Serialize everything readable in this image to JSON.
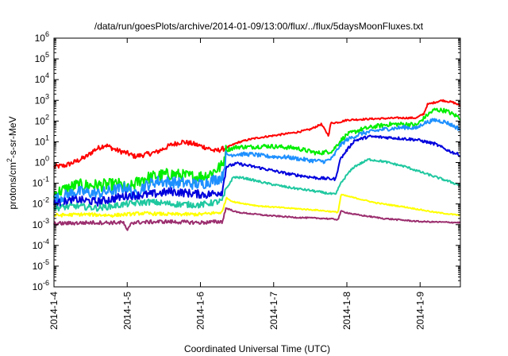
{
  "chart_data": {
    "type": "line",
    "title": "/data/run/goesPlots/archive/2014-01-09/13:00/flux/../flux/5daysMoonFluxes.txt",
    "xlabel": "Coordinated Universal Time (UTC)",
    "ylabel_parts": {
      "pre": "protons/cm",
      "sup": "2",
      "post": "-s-sr-MeV"
    },
    "y_scale": "log",
    "ylim": [
      1e-06,
      1000000.0
    ],
    "xlim_days": [
      0,
      5.55
    ],
    "grid": false,
    "legend": "none",
    "x_ticks": [
      {
        "label": "2014-1-4",
        "day": 0
      },
      {
        "label": "2014-1-5",
        "day": 1
      },
      {
        "label": "2014-1-6",
        "day": 2
      },
      {
        "label": "2014-1-7",
        "day": 3
      },
      {
        "label": "2014-1-8",
        "day": 4
      },
      {
        "label": "2014-1-9",
        "day": 5
      }
    ],
    "y_ticks": [
      {
        "base": "10",
        "exp": "-6",
        "value": -6
      },
      {
        "base": "10",
        "exp": "-5",
        "value": -5
      },
      {
        "base": "10",
        "exp": "-4",
        "value": -4
      },
      {
        "base": "10",
        "exp": "-3",
        "value": -3
      },
      {
        "base": "10",
        "exp": "-2",
        "value": -2
      },
      {
        "base": "10",
        "exp": "-1",
        "value": -1
      },
      {
        "base": "10",
        "exp": "0",
        "value": 0
      },
      {
        "base": "10",
        "exp": "1",
        "value": 1
      },
      {
        "base": "10",
        "exp": "2",
        "value": 2
      },
      {
        "base": "10",
        "exp": "3",
        "value": 3
      },
      {
        "base": "10",
        "exp": "4",
        "value": 4
      },
      {
        "base": "10",
        "exp": "5",
        "value": 5
      },
      {
        "base": "10",
        "exp": "6",
        "value": 6
      }
    ],
    "series": [
      {
        "color": "#ff0000",
        "noise": 0.12,
        "points": [
          [
            0,
            -0.2
          ],
          [
            0.15,
            -0.15
          ],
          [
            0.3,
            0.05
          ],
          [
            0.45,
            0.3
          ],
          [
            0.55,
            0.6
          ],
          [
            0.7,
            0.85
          ],
          [
            0.85,
            0.6
          ],
          [
            1.0,
            0.45
          ],
          [
            1.1,
            0.3
          ],
          [
            1.2,
            0.35
          ],
          [
            1.4,
            0.5
          ],
          [
            1.6,
            0.85
          ],
          [
            1.75,
            1.0
          ],
          [
            1.9,
            0.9
          ],
          [
            2.1,
            0.7
          ],
          [
            2.2,
            0.55
          ],
          [
            2.35,
            0.7
          ],
          [
            2.5,
            0.95
          ],
          [
            2.65,
            1.1
          ],
          [
            2.8,
            1.2
          ],
          [
            3.0,
            1.3
          ],
          [
            3.3,
            1.45
          ],
          [
            3.5,
            1.6
          ],
          [
            3.65,
            1.85
          ],
          [
            3.75,
            1.3
          ],
          [
            3.78,
            1.9
          ],
          [
            3.9,
            1.95
          ],
          [
            4.0,
            2.05
          ],
          [
            4.3,
            2.1
          ],
          [
            4.7,
            2.15
          ],
          [
            4.95,
            2.15
          ],
          [
            5.05,
            2.35
          ],
          [
            5.1,
            2.8
          ],
          [
            5.3,
            3.0
          ],
          [
            5.45,
            2.9
          ],
          [
            5.55,
            2.75
          ]
        ]
      },
      {
        "color": "#00ee00",
        "noise": 0.3,
        "points": [
          [
            0,
            -1.5
          ],
          [
            0.3,
            -1.1
          ],
          [
            0.6,
            -1.1
          ],
          [
            0.9,
            -1.05
          ],
          [
            1.0,
            -1.3
          ],
          [
            1.2,
            -0.8
          ],
          [
            1.4,
            -0.65
          ],
          [
            1.6,
            -0.55
          ],
          [
            1.8,
            -0.65
          ],
          [
            1.95,
            -0.7
          ],
          [
            2.1,
            -0.6
          ],
          [
            2.3,
            -0.15
          ],
          [
            2.35,
            0.6
          ],
          [
            2.5,
            0.75
          ],
          [
            2.7,
            0.75
          ],
          [
            2.9,
            0.8
          ],
          [
            3.1,
            0.75
          ],
          [
            3.3,
            0.7
          ],
          [
            3.6,
            0.45
          ],
          [
            3.8,
            0.55
          ],
          [
            3.9,
            1.0
          ],
          [
            4.0,
            1.35
          ],
          [
            4.2,
            1.6
          ],
          [
            4.4,
            1.75
          ],
          [
            4.6,
            1.85
          ],
          [
            4.85,
            1.85
          ],
          [
            4.95,
            1.8
          ],
          [
            5.1,
            2.3
          ],
          [
            5.2,
            2.55
          ],
          [
            5.35,
            2.5
          ],
          [
            5.55,
            2.15
          ]
        ]
      },
      {
        "color": "#1e90ff",
        "noise": 0.28,
        "points": [
          [
            0,
            -1.8
          ],
          [
            0.3,
            -1.4
          ],
          [
            0.6,
            -1.5
          ],
          [
            1.0,
            -1.2
          ],
          [
            1.1,
            -1.6
          ],
          [
            1.2,
            -1.2
          ],
          [
            1.4,
            -0.9
          ],
          [
            1.6,
            -0.95
          ],
          [
            1.8,
            -1.0
          ],
          [
            2.0,
            -1.05
          ],
          [
            2.3,
            -0.7
          ],
          [
            2.35,
            0.35
          ],
          [
            2.5,
            0.4
          ],
          [
            2.7,
            0.4
          ],
          [
            2.9,
            0.3
          ],
          [
            3.2,
            0.25
          ],
          [
            3.5,
            0.1
          ],
          [
            3.7,
            0.05
          ],
          [
            3.8,
            0.2
          ],
          [
            3.9,
            0.8
          ],
          [
            4.0,
            1.1
          ],
          [
            4.2,
            1.4
          ],
          [
            4.5,
            1.6
          ],
          [
            4.8,
            1.7
          ],
          [
            4.95,
            1.65
          ],
          [
            5.05,
            1.9
          ],
          [
            5.2,
            2.05
          ],
          [
            5.35,
            1.95
          ],
          [
            5.55,
            1.6
          ]
        ]
      },
      {
        "color": "#0000dd",
        "noise": 0.2,
        "points": [
          [
            0,
            -2.0
          ],
          [
            0.3,
            -1.8
          ],
          [
            0.6,
            -1.9
          ],
          [
            1.0,
            -1.6
          ],
          [
            1.3,
            -1.55
          ],
          [
            1.6,
            -1.4
          ],
          [
            1.9,
            -1.5
          ],
          [
            2.1,
            -1.55
          ],
          [
            2.3,
            -1.4
          ],
          [
            2.35,
            -0.2
          ],
          [
            2.5,
            -0.05
          ],
          [
            2.8,
            -0.25
          ],
          [
            3.0,
            -0.4
          ],
          [
            3.2,
            -0.55
          ],
          [
            3.6,
            -0.75
          ],
          [
            3.85,
            -0.8
          ],
          [
            3.9,
            0.1
          ],
          [
            4.0,
            0.6
          ],
          [
            4.1,
            1.05
          ],
          [
            4.3,
            1.25
          ],
          [
            4.6,
            1.2
          ],
          [
            4.95,
            1.1
          ],
          [
            5.2,
            0.9
          ],
          [
            5.4,
            0.55
          ],
          [
            5.55,
            0.35
          ]
        ]
      },
      {
        "color": "#20c8a0",
        "noise": 0.15,
        "points": [
          [
            0,
            -2.2
          ],
          [
            0.3,
            -2.1
          ],
          [
            0.6,
            -2.2
          ],
          [
            1.0,
            -2.0
          ],
          [
            1.3,
            -1.9
          ],
          [
            1.6,
            -2.0
          ],
          [
            2.0,
            -2.05
          ],
          [
            2.3,
            -1.85
          ],
          [
            2.35,
            -1.3
          ],
          [
            2.45,
            -0.7
          ],
          [
            2.6,
            -0.75
          ],
          [
            2.9,
            -1.0
          ],
          [
            3.2,
            -1.2
          ],
          [
            3.5,
            -1.35
          ],
          [
            3.85,
            -1.55
          ],
          [
            3.9,
            -1.1
          ],
          [
            4.0,
            -0.6
          ],
          [
            4.1,
            -0.2
          ],
          [
            4.3,
            0.15
          ],
          [
            4.5,
            0.05
          ],
          [
            4.8,
            -0.2
          ],
          [
            5.0,
            -0.45
          ],
          [
            5.3,
            -0.8
          ],
          [
            5.55,
            -1.1
          ]
        ]
      },
      {
        "color": "#ffff00",
        "noise": 0.08,
        "points": [
          [
            0,
            -2.55
          ],
          [
            0.4,
            -2.5
          ],
          [
            0.8,
            -2.55
          ],
          [
            1.2,
            -2.45
          ],
          [
            1.6,
            -2.5
          ],
          [
            2.0,
            -2.5
          ],
          [
            2.3,
            -2.4
          ],
          [
            2.35,
            -1.7
          ],
          [
            2.45,
            -1.9
          ],
          [
            2.8,
            -2.1
          ],
          [
            3.2,
            -2.2
          ],
          [
            3.6,
            -2.3
          ],
          [
            3.88,
            -2.4
          ],
          [
            3.92,
            -1.55
          ],
          [
            4.1,
            -1.7
          ],
          [
            4.4,
            -1.95
          ],
          [
            4.8,
            -2.15
          ],
          [
            5.2,
            -2.4
          ],
          [
            5.55,
            -2.55
          ]
        ]
      },
      {
        "color": "#9b2e6e",
        "noise": 0.09,
        "points": [
          [
            0,
            -2.95
          ],
          [
            0.5,
            -2.9
          ],
          [
            0.95,
            -2.9
          ],
          [
            1.0,
            -3.35
          ],
          [
            1.05,
            -2.9
          ],
          [
            1.5,
            -2.85
          ],
          [
            2.0,
            -2.9
          ],
          [
            2.3,
            -2.85
          ],
          [
            2.35,
            -2.2
          ],
          [
            2.5,
            -2.4
          ],
          [
            2.9,
            -2.55
          ],
          [
            3.3,
            -2.65
          ],
          [
            3.7,
            -2.7
          ],
          [
            3.88,
            -2.75
          ],
          [
            3.92,
            -2.35
          ],
          [
            4.1,
            -2.5
          ],
          [
            4.5,
            -2.7
          ],
          [
            5.0,
            -2.85
          ],
          [
            5.55,
            -2.9
          ]
        ]
      }
    ]
  }
}
